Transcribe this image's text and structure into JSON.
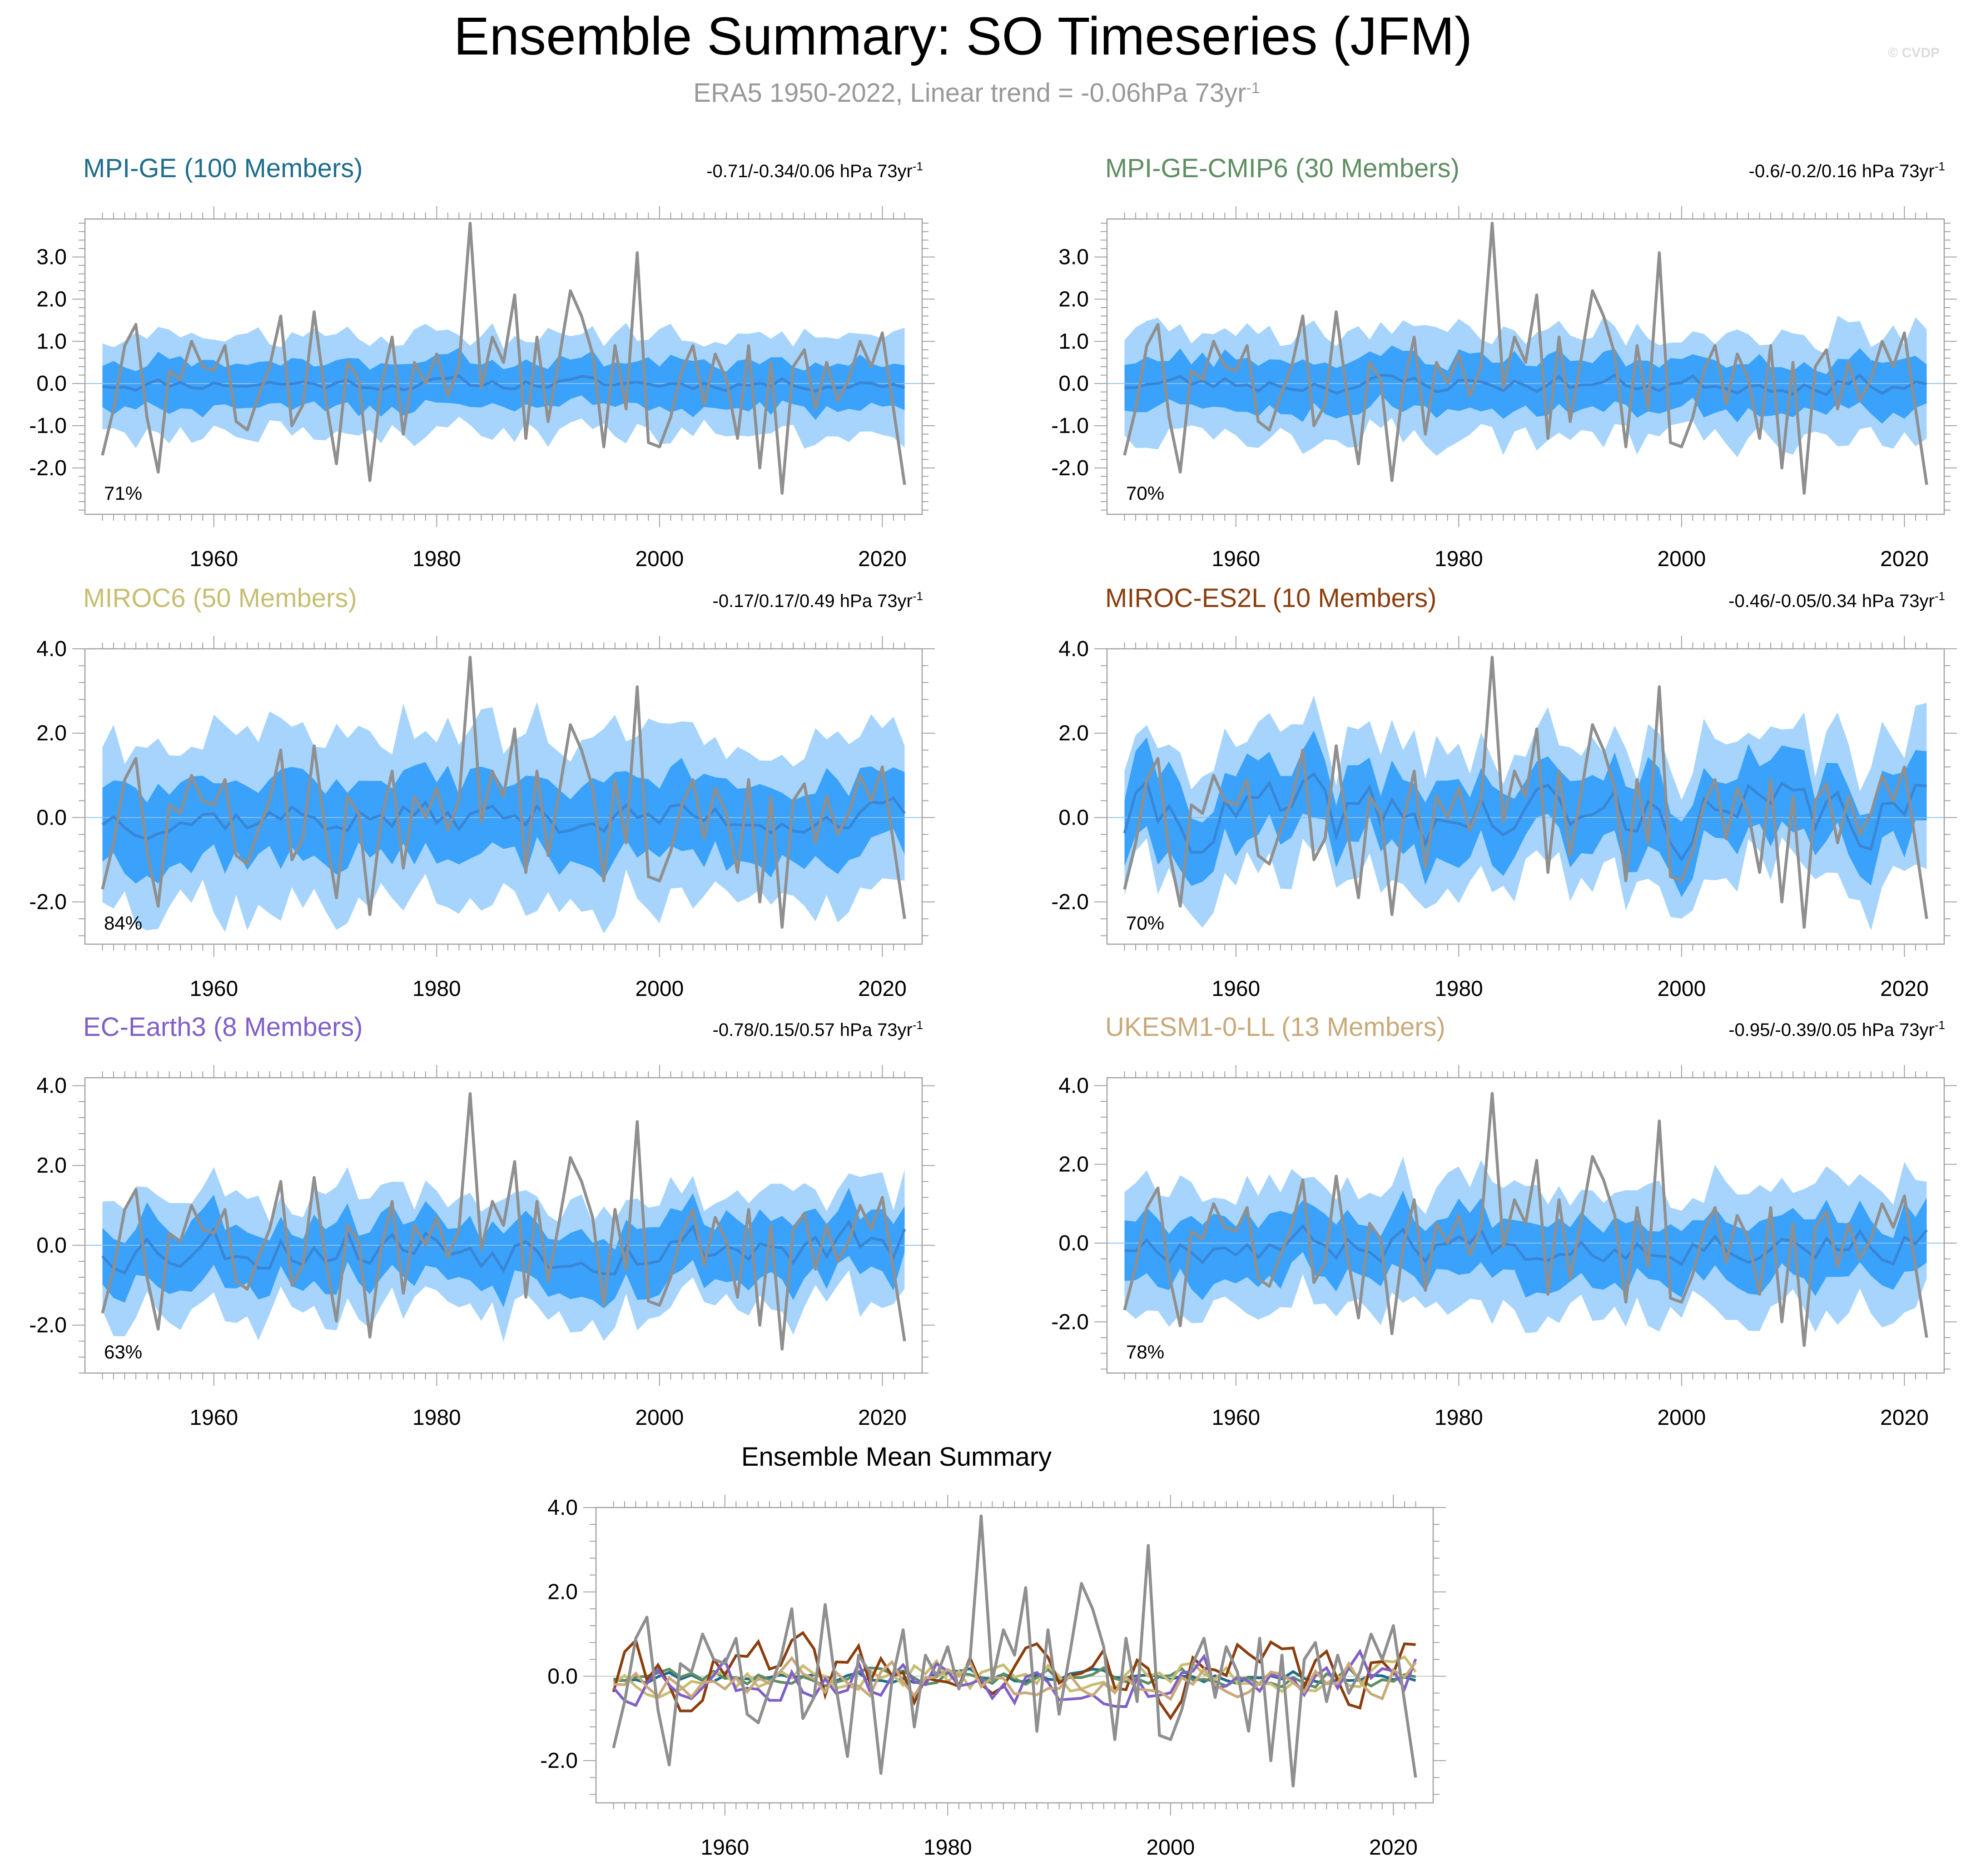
{
  "header": {
    "title": "Ensemble Summary: SO Timeseries (JFM)",
    "subtitle": "ERA5 1950-2022, Linear trend = -0.06hPa 73yr",
    "subtitle_sup": "-1",
    "credit": "© CVDP"
  },
  "colors": {
    "band_outer": "#a6d4fc",
    "band_inner": "#3aa2fa",
    "ens_mean": "#3a86d6",
    "obs": "#8f8f8f",
    "frame": "#a0a0a0"
  },
  "chart_data": [
    {
      "type": "line",
      "id": "mpi-ge",
      "title": "MPI-GE (100 Members)",
      "title_color": "#1f6d8c",
      "trend_label": "-0.71/-0.34/0.06 hPa 73yr",
      "trend_sup": "-1",
      "percent_label": "71%",
      "ylim": [
        -3.1,
        3.9
      ],
      "yticks": [
        3.0,
        2.0,
        1.0,
        0.0,
        -1.0,
        -2.0
      ],
      "ytick_labels": [
        "3.0",
        "2.0",
        "1.0",
        "0.0",
        "-1.0",
        "-2.0"
      ],
      "xlim": [
        1949,
        2023
      ],
      "xticks": [
        1960,
        1980,
        2000,
        2020
      ],
      "xtick_labels": [
        "1960",
        "1980",
        "2000",
        "2020"
      ],
      "outer_halfwidth": 1.15,
      "inner_halfwidth": 0.55,
      "ens_mean_amplitude": 0.14,
      "ens_mean_seed": 11
    },
    {
      "type": "line",
      "id": "mpi-ge-cmip6",
      "title": "MPI-GE-CMIP6 (30 Members)",
      "title_color": "#5e8e62",
      "trend_label": "-0.6/-0.2/0.16 hPa 73yr",
      "trend_sup": "-1",
      "percent_label": "70%",
      "ylim": [
        -3.1,
        3.9
      ],
      "yticks": [
        3.0,
        2.0,
        1.0,
        0.0,
        -1.0,
        -2.0
      ],
      "ytick_labels": [
        "3.0",
        "2.0",
        "1.0",
        "0.0",
        "-1.0",
        "-2.0"
      ],
      "xlim": [
        1949,
        2023
      ],
      "xticks": [
        1960,
        1980,
        2000,
        2020
      ],
      "xtick_labels": [
        "1960",
        "1980",
        "2000",
        "2020"
      ],
      "outer_halfwidth": 1.25,
      "inner_halfwidth": 0.6,
      "ens_mean_amplitude": 0.2,
      "ens_mean_seed": 23
    },
    {
      "type": "line",
      "id": "miroc6",
      "title": "MIROC6 (50 Members)",
      "title_color": "#c7be73",
      "trend_label": "-0.17/0.17/0.49 hPa 73yr",
      "trend_sup": "-1",
      "percent_label": "84%",
      "ylim": [
        -3.0,
        4.0
      ],
      "yticks": [
        4.0,
        2.0,
        0.0,
        -2.0
      ],
      "ytick_labels": [
        "4.0",
        "2.0",
        "0.0",
        "-2.0"
      ],
      "xlim": [
        1949,
        2023
      ],
      "xticks": [
        1960,
        1980,
        2000,
        2020
      ],
      "xtick_labels": [
        "1960",
        "1980",
        "2000",
        "2020"
      ],
      "outer_halfwidth": 2.0,
      "inner_halfwidth": 0.95,
      "ens_mean_amplitude": 0.35,
      "ens_mean_seed": 37
    },
    {
      "type": "line",
      "id": "miroc-es2l",
      "title": "MIROC-ES2L (10 Members)",
      "title_color": "#8b3e0e",
      "trend_label": "-0.46/-0.05/0.34 hPa 73yr",
      "trend_sup": "-1",
      "percent_label": "70%",
      "ylim": [
        -3.0,
        4.0
      ],
      "yticks": [
        4.0,
        2.0,
        0.0,
        -2.0
      ],
      "ytick_labels": [
        "4.0",
        "2.0",
        "0.0",
        "-2.0"
      ],
      "xlim": [
        1949,
        2023
      ],
      "xticks": [
        1960,
        1980,
        2000,
        2020
      ],
      "xtick_labels": [
        "1960",
        "1980",
        "2000",
        "2020"
      ],
      "outer_halfwidth": 1.6,
      "inner_halfwidth": 0.85,
      "ens_mean_amplitude": 0.75,
      "ens_mean_seed": 41
    },
    {
      "type": "line",
      "id": "ec-earth3",
      "title": "EC-Earth3 (8 Members)",
      "title_color": "#8060c8",
      "trend_label": "-0.78/0.15/0.57 hPa 73yr",
      "trend_sup": "-1",
      "percent_label": "63%",
      "ylim": [
        -3.2,
        4.2
      ],
      "yticks": [
        4.0,
        2.0,
        0.0,
        -2.0
      ],
      "ytick_labels": [
        "4.0",
        "2.0",
        "0.0",
        "-2.0"
      ],
      "xlim": [
        1949,
        2023
      ],
      "xticks": [
        1960,
        1980,
        2000,
        2020
      ],
      "xtick_labels": [
        "1960",
        "1980",
        "2000",
        "2020"
      ],
      "outer_halfwidth": 1.45,
      "inner_halfwidth": 0.75,
      "ens_mean_amplitude": 0.55,
      "ens_mean_seed": 53
    },
    {
      "type": "line",
      "id": "ukesm1-0-ll",
      "title": "UKESM1-0-LL (13 Members)",
      "title_color": "#c9a97a",
      "trend_label": "-0.95/-0.39/0.05 hPa 73yr",
      "trend_sup": "-1",
      "percent_label": "78%",
      "ylim": [
        -3.3,
        4.2
      ],
      "yticks": [
        4.0,
        2.0,
        0.0,
        -2.0
      ],
      "ytick_labels": [
        "4.0",
        "2.0",
        "0.0",
        "-2.0"
      ],
      "xlim": [
        1949,
        2023
      ],
      "xticks": [
        1960,
        1980,
        2000,
        2020
      ],
      "xtick_labels": [
        "1960",
        "1980",
        "2000",
        "2020"
      ],
      "outer_halfwidth": 1.55,
      "inner_halfwidth": 0.8,
      "ens_mean_amplitude": 0.4,
      "ens_mean_seed": 67
    },
    {
      "type": "line",
      "id": "ensemble-mean-summary",
      "title": "Ensemble Mean Summary",
      "title_color": "#000000",
      "ylim": [
        -3.0,
        4.0
      ],
      "yticks": [
        4.0,
        2.0,
        0.0,
        -2.0
      ],
      "ytick_labels": [
        "4.0",
        "2.0",
        "0.0",
        "-2.0"
      ],
      "xlim": [
        1949,
        2023
      ],
      "xticks": [
        1960,
        1980,
        2000,
        2020
      ],
      "xtick_labels": [
        "1960",
        "1980",
        "2000",
        "2020"
      ],
      "series": [
        {
          "name": "MPI-GE",
          "color": "#1f6d8c",
          "amplitude": 0.14,
          "seed": 11
        },
        {
          "name": "MPI-GE-CMIP6",
          "color": "#5e8e62",
          "amplitude": 0.2,
          "seed": 23
        },
        {
          "name": "MIROC6",
          "color": "#c7be73",
          "amplitude": 0.35,
          "seed": 37
        },
        {
          "name": "MIROC-ES2L",
          "color": "#8b3e0e",
          "amplitude": 0.75,
          "seed": 41
        },
        {
          "name": "EC-Earth3",
          "color": "#8060c8",
          "amplitude": 0.55,
          "seed": 53
        },
        {
          "name": "UKESM1-0-LL",
          "color": "#c9a97a",
          "amplitude": 0.4,
          "seed": 67
        }
      ]
    }
  ],
  "observed_era5": {
    "name": "ERA5",
    "years": [
      1950,
      2022
    ],
    "values": [
      -1.7,
      -0.6,
      0.9,
      1.4,
      -0.8,
      -2.1,
      0.3,
      0.1,
      1.0,
      0.4,
      0.3,
      0.9,
      -0.9,
      -1.1,
      -0.3,
      0.4,
      1.6,
      -1.0,
      -0.5,
      1.7,
      -0.3,
      -1.9,
      0.5,
      0.1,
      -2.3,
      -0.1,
      1.1,
      -1.2,
      0.5,
      0.0,
      0.7,
      -0.3,
      0.4,
      3.8,
      -0.1,
      1.1,
      0.5,
      2.1,
      -1.3,
      1.1,
      -0.9,
      0.6,
      2.2,
      1.6,
      0.7,
      -1.5,
      0.9,
      -0.6,
      3.1,
      -1.4,
      -1.5,
      -0.8,
      0.3,
      0.9,
      -0.5,
      0.7,
      0.1,
      -1.3,
      0.9,
      -2.0,
      0.5,
      -2.6,
      0.4,
      0.8,
      -0.6,
      0.5,
      -0.4,
      0.1,
      1.0,
      0.4,
      1.2,
      -0.6,
      -2.4
    ]
  }
}
